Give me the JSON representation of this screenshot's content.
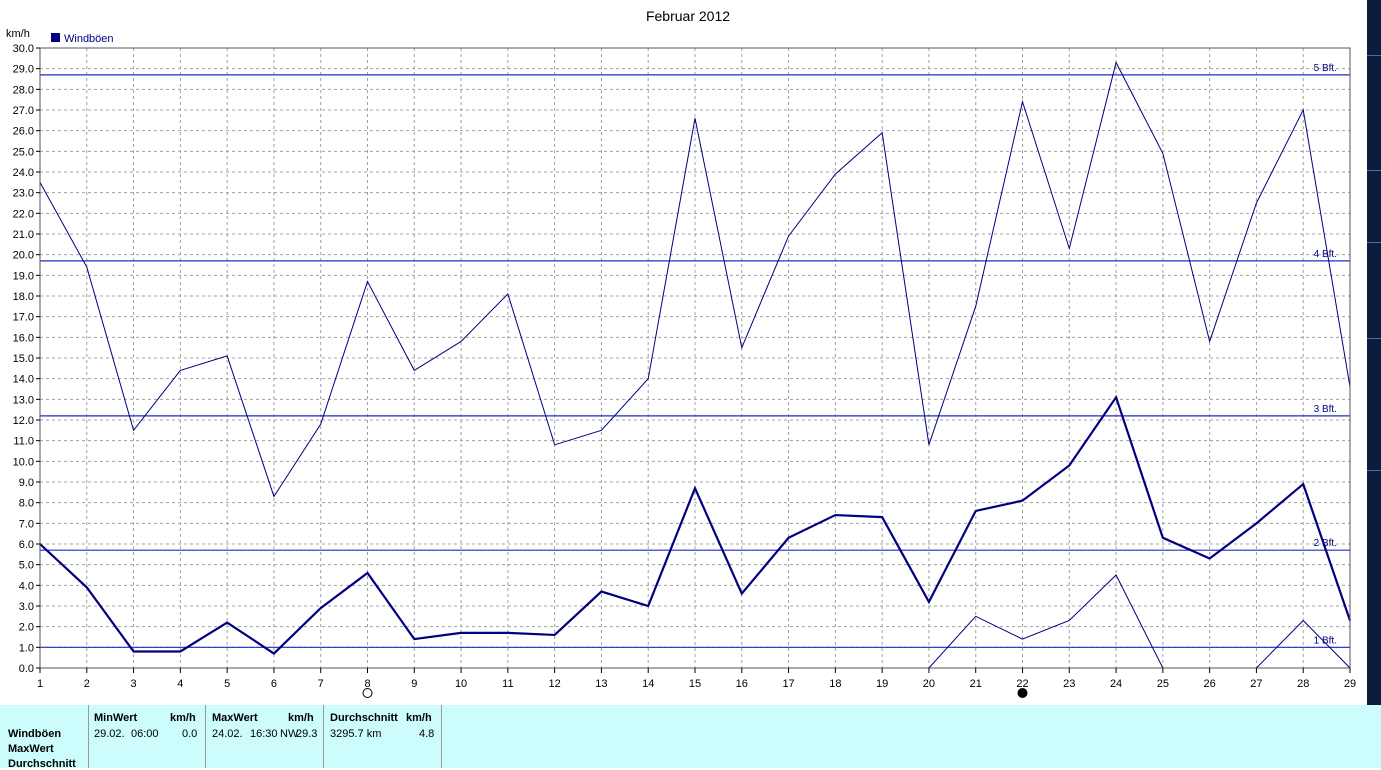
{
  "chart_data": {
    "type": "line",
    "title": "Februar 2012",
    "ylabel": "km/h",
    "ylim": [
      0,
      30
    ],
    "y_ticks": [
      "0.0",
      "1.0",
      "2.0",
      "3.0",
      "4.0",
      "5.0",
      "6.0",
      "7.0",
      "8.0",
      "9.0",
      "10.0",
      "11.0",
      "12.0",
      "13.0",
      "14.0",
      "15.0",
      "16.0",
      "17.0",
      "18.0",
      "19.0",
      "20.0",
      "21.0",
      "22.0",
      "23.0",
      "24.0",
      "25.0",
      "26.0",
      "27.0",
      "28.0",
      "29.0",
      "30.0"
    ],
    "x": [
      1,
      2,
      3,
      4,
      5,
      6,
      7,
      8,
      9,
      10,
      11,
      12,
      13,
      14,
      15,
      16,
      17,
      18,
      19,
      20,
      21,
      22,
      23,
      24,
      25,
      26,
      27,
      28,
      29
    ],
    "grid": true,
    "legend": {
      "placement": "top-left",
      "entries": [
        "Windböen"
      ]
    },
    "series": [
      {
        "name": "Windböen",
        "role": "max",
        "color": "#000080",
        "values": [
          23.5,
          19.4,
          11.5,
          14.4,
          15.1,
          8.3,
          11.8,
          18.7,
          14.4,
          15.8,
          18.1,
          10.8,
          11.5,
          14.0,
          26.6,
          15.5,
          20.9,
          23.9,
          25.9,
          10.8,
          17.5,
          27.4,
          20.3,
          29.3,
          24.9,
          15.8,
          22.5,
          27.0,
          13.6
        ]
      },
      {
        "role": "average",
        "color": "#000080",
        "values": [
          6.0,
          3.9,
          0.8,
          0.8,
          2.2,
          0.7,
          2.9,
          4.6,
          1.4,
          1.7,
          1.7,
          1.6,
          3.7,
          3.0,
          8.7,
          3.6,
          6.3,
          7.4,
          7.3,
          3.2,
          7.6,
          8.1,
          9.8,
          13.1,
          6.3,
          5.3,
          7.0,
          8.9,
          2.3
        ]
      },
      {
        "role": "min",
        "color": "#000080",
        "values": [
          0,
          0,
          0,
          0,
          0,
          0,
          0,
          0,
          0,
          0,
          0,
          0,
          0,
          0,
          0,
          0,
          0,
          0,
          0,
          0,
          2.5,
          1.4,
          2.3,
          4.5,
          0,
          0,
          0,
          2.3,
          0
        ]
      }
    ],
    "reference_lines": [
      {
        "label": "1 Bft.",
        "value": 1.0
      },
      {
        "label": "2 Bft.",
        "value": 5.7
      },
      {
        "label": "3 Bft.",
        "value": 12.2
      },
      {
        "label": "4 Bft.",
        "value": 19.7
      },
      {
        "label": "5 Bft.",
        "value": 28.7
      }
    ],
    "moon_phases": [
      {
        "day": 8,
        "phase": "full-moon"
      },
      {
        "day": 22,
        "phase": "new-moon"
      }
    ]
  },
  "stats": {
    "row_labels": [
      "Windböen",
      "MaxWert",
      "Durchschnitt"
    ],
    "min": {
      "header": "MinWert",
      "unit": "km/h",
      "date": "29.02.",
      "time": "06:00",
      "value": "0.0"
    },
    "max": {
      "header": "MaxWert",
      "unit": "km/h",
      "date": "24.02.",
      "time": "16:30",
      "dir": "NW",
      "value": "29.3"
    },
    "avg": {
      "header": "Durchschnitt",
      "unit": "km/h",
      "distance": "3295.7 km",
      "value": "4.8"
    }
  },
  "colors": {
    "line": "#000080",
    "grid": "#a0a0a0",
    "panel": "#ccfcfc",
    "strip": "#0d1b3a"
  }
}
